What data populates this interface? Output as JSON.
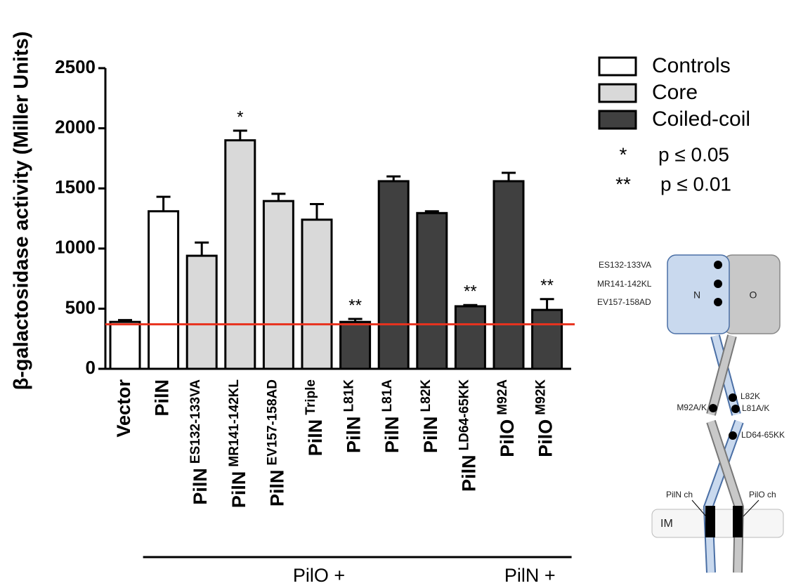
{
  "chart_data": {
    "type": "bar",
    "y_label": "β-galactosidase activity (Miller Units)",
    "categories": [
      "Vector",
      "PilN",
      "PilN",
      "PilN",
      "PilN",
      "PilN",
      "PilN",
      "PilN",
      "PilN",
      "PilN",
      "PilO",
      "PilO"
    ],
    "category_details": [
      null,
      null,
      "ES132-133VA",
      "MR141-142KL",
      "EV157-158AD",
      "Triple",
      "L81K",
      "L81A",
      "L82K",
      "LD64-65KK",
      "M92A",
      "M92K"
    ],
    "series": [
      {
        "name": "Controls",
        "color": "#ffffff",
        "values": [
          390,
          1310,
          null,
          null,
          null,
          null,
          null,
          null,
          null,
          null,
          null,
          null
        ],
        "errors": [
          15,
          120,
          null,
          null,
          null,
          null,
          null,
          null,
          null,
          null,
          null,
          null
        ]
      },
      {
        "name": "Core",
        "color": "#d9d9d9",
        "values": [
          null,
          null,
          940,
          1900,
          1395,
          1240,
          null,
          null,
          null,
          null,
          null,
          null
        ],
        "errors": [
          null,
          null,
          110,
          80,
          60,
          130,
          null,
          null,
          null,
          null,
          null,
          null
        ]
      },
      {
        "name": "Coiled-coil",
        "color": "#404040",
        "values": [
          null,
          null,
          null,
          null,
          null,
          null,
          390,
          1560,
          1295,
          520,
          1560,
          490
        ],
        "errors": [
          null,
          null,
          null,
          null,
          null,
          null,
          25,
          40,
          15,
          10,
          70,
          90
        ]
      }
    ],
    "significance": [
      null,
      null,
      null,
      "*",
      null,
      null,
      "**",
      null,
      null,
      "**",
      null,
      "**"
    ],
    "significance_legend": [
      {
        "symbol": "*",
        "label": "p ≤ 0.05"
      },
      {
        "symbol": "**",
        "label": "p ≤ 0.01"
      }
    ],
    "reference_line": {
      "value": 370,
      "color": "#e8321e"
    },
    "category_groups": [
      {
        "label": "PilO +",
        "from": 1,
        "to": 9
      },
      {
        "label": "PilN +",
        "from": 10,
        "to": 11
      }
    ],
    "ylim": [
      0,
      2500
    ],
    "yticks": [
      0,
      500,
      1000,
      1500,
      2000,
      2500
    ]
  },
  "diagram": {
    "mutations": [
      "ES132-133VA",
      "MR141-142KL",
      "EV157-158AD"
    ],
    "n_label": "N",
    "o_label": "O",
    "coil_labels": [
      "L82K",
      "L81A/K",
      "M92A/K",
      "LD64-65KK"
    ],
    "pilN_ch": "PilN ch",
    "pilO_ch": "PilO ch",
    "membrane": "IM"
  }
}
